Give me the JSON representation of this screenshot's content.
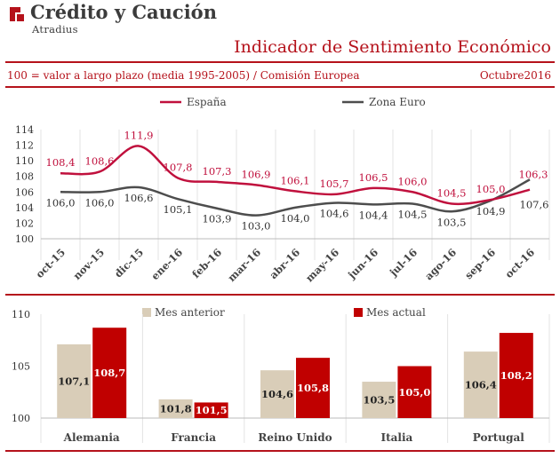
{
  "header": {
    "brand": "Crédito y Caución",
    "brand_sub": "Atradius",
    "title": "Indicador de Sentimiento Económico",
    "subtitle": "100 = valor a largo plazo (media 1995-2005) / Comisión Europea",
    "date": "Octubre2016"
  },
  "colors": {
    "accent": "#b5121b",
    "spain": "#c0103d",
    "euro": "#4d4d4d",
    "prev": "#d9cdb8",
    "current": "#c00000"
  },
  "chart_data": [
    {
      "type": "line",
      "title": "",
      "categories": [
        "oct-15",
        "nov-15",
        "dic-15",
        "ene-16",
        "feb-16",
        "mar-16",
        "abr-16",
        "may-16",
        "jun-16",
        "jul-16",
        "ago-16",
        "sep-16",
        "oct-16"
      ],
      "series": [
        {
          "name": "España",
          "values": [
            108.4,
            108.6,
            111.9,
            107.8,
            107.3,
            106.9,
            106.1,
            105.7,
            106.5,
            106.0,
            104.5,
            105.0,
            106.3
          ],
          "labels": [
            "108,4",
            "108,6",
            "111,9",
            "107,8",
            "107,3",
            "106,9",
            "106,1",
            "105,7",
            "106,5",
            "106,0",
            "104,5",
            "105,0",
            "106,3"
          ]
        },
        {
          "name": "Zona Euro",
          "values": [
            106.0,
            106.0,
            106.6,
            105.1,
            103.9,
            103.0,
            104.0,
            104.6,
            104.4,
            104.5,
            103.5,
            104.9,
            107.6
          ],
          "labels": [
            "106,0",
            "106,0",
            "106,6",
            "105,1",
            "103,9",
            "103,0",
            "104,0",
            "104,6",
            "104,4",
            "104,5",
            "103,5",
            "104,9",
            "107,6"
          ]
        }
      ],
      "ylim": [
        100,
        114
      ],
      "yticks": [
        "100",
        "102",
        "104",
        "106",
        "108",
        "110",
        "112",
        "114"
      ],
      "grid": "vertical",
      "legend": "top"
    },
    {
      "type": "bar",
      "categories": [
        "Alemania",
        "Francia",
        "Reino Unido",
        "Italia",
        "Portugal"
      ],
      "series": [
        {
          "name": "Mes anterior",
          "values": [
            107.1,
            101.8,
            104.6,
            103.5,
            106.4
          ],
          "labels": [
            "107,1",
            "101,8",
            "104,6",
            "103,5",
            "106,4"
          ]
        },
        {
          "name": "Mes actual",
          "values": [
            108.7,
            101.5,
            105.8,
            105.0,
            108.2
          ],
          "labels": [
            "108,7",
            "101,5",
            "105,8",
            "105,0",
            "108,2"
          ]
        }
      ],
      "ylim": [
        100,
        110
      ],
      "yticks": [
        "100",
        "105",
        "110"
      ],
      "grid": "vertical",
      "legend": "top"
    }
  ]
}
